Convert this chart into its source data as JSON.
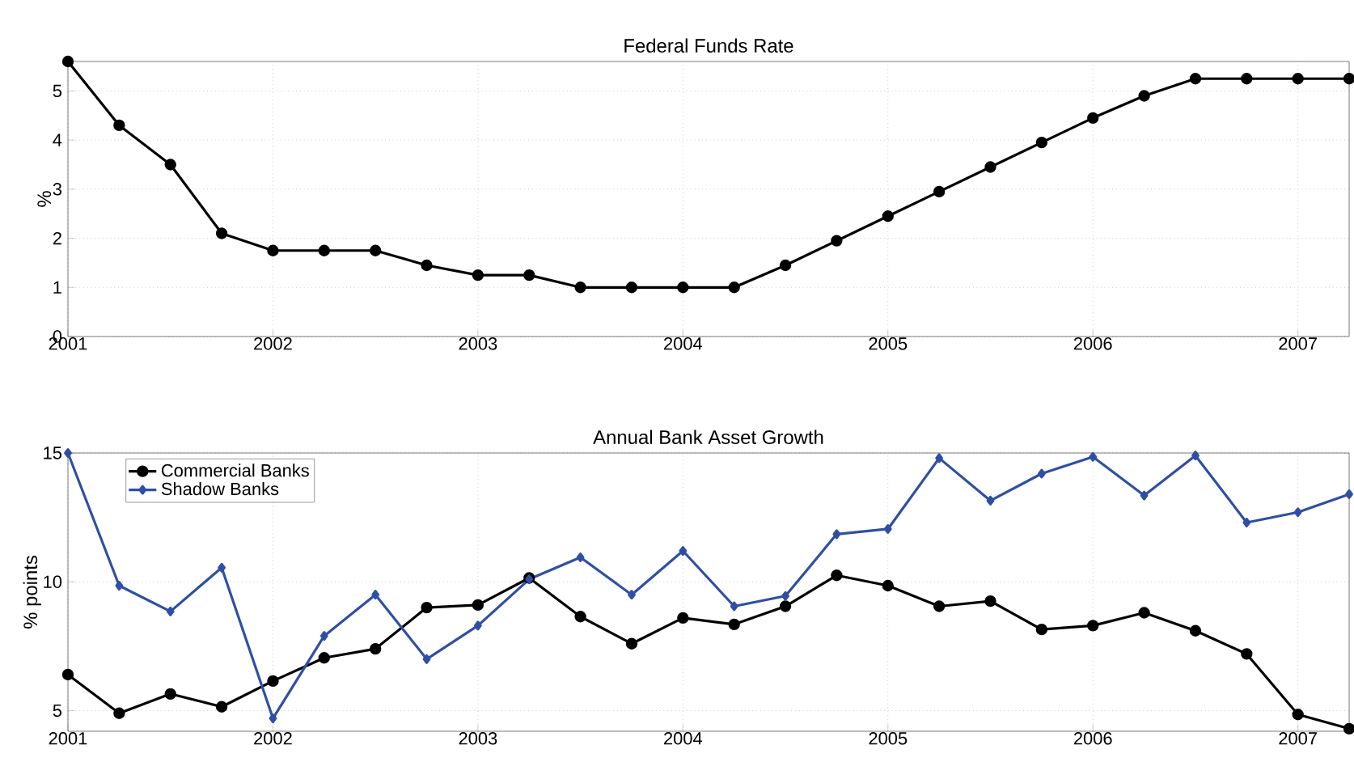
{
  "chart_data": [
    {
      "type": "line",
      "title": "Federal Funds Rate",
      "ylabel": "%",
      "x": [
        2001,
        2001.25,
        2001.5,
        2001.75,
        2002,
        2002.25,
        2002.5,
        2002.75,
        2003,
        2003.25,
        2003.5,
        2003.75,
        2004,
        2004.25,
        2004.5,
        2004.75,
        2005,
        2005.25,
        2005.5,
        2005.75,
        2006,
        2006.25,
        2006.5,
        2006.75,
        2007,
        2007.25
      ],
      "series": [
        {
          "color": "#000000",
          "values": [
            5.6,
            4.3,
            3.5,
            2.1,
            1.75,
            1.75,
            1.75,
            1.45,
            1.25,
            1.25,
            1.0,
            1.0,
            1.0,
            1.0,
            1.45,
            1.95,
            2.45,
            2.95,
            3.45,
            3.95,
            4.45,
            4.9,
            5.25,
            5.25,
            5.25,
            5.25
          ]
        }
      ],
      "xlim": [
        2001,
        2007.25
      ],
      "ylim": [
        0,
        5.6
      ],
      "xticks": [
        2001,
        2002,
        2003,
        2004,
        2005,
        2006,
        2007
      ],
      "yticks": [
        0,
        1,
        2,
        3,
        4,
        5
      ],
      "grid": true,
      "marker": "circle",
      "line_style": "solid"
    },
    {
      "type": "line",
      "title": "Annual Bank Asset Growth",
      "ylabel": "% points",
      "x": [
        2001,
        2001.25,
        2001.5,
        2001.75,
        2002,
        2002.25,
        2002.5,
        2002.75,
        2003,
        2003.25,
        2003.5,
        2003.75,
        2004,
        2004.25,
        2004.5,
        2004.75,
        2005,
        2005.25,
        2005.5,
        2005.75,
        2006,
        2006.25,
        2006.5,
        2006.75,
        2007,
        2007.25
      ],
      "series": [
        {
          "name": "Commercial Banks",
          "color": "#000000",
          "marker": "circle",
          "values": [
            6.4,
            4.9,
            5.65,
            5.15,
            6.15,
            7.05,
            7.4,
            9.0,
            9.1,
            10.15,
            8.65,
            7.6,
            8.6,
            8.35,
            9.05,
            10.25,
            9.85,
            9.05,
            9.25,
            8.15,
            8.3,
            8.8,
            8.1,
            7.2,
            4.85,
            4.3
          ]
        },
        {
          "name": "Shadow Banks",
          "color": "#2e4fa3",
          "marker": "diamond",
          "values": [
            15.0,
            9.85,
            8.85,
            10.55,
            4.7,
            7.9,
            9.5,
            7.0,
            8.3,
            10.1,
            10.95,
            9.5,
            11.2,
            9.05,
            9.45,
            11.85,
            12.05,
            14.8,
            13.15,
            14.2,
            14.85,
            13.35,
            14.9,
            12.3,
            12.7,
            13.4
          ]
        }
      ],
      "xlim": [
        2001,
        2007.25
      ],
      "ylim": [
        4.2,
        15
      ],
      "xticks": [
        2001,
        2002,
        2003,
        2004,
        2005,
        2006,
        2007
      ],
      "yticks": [
        5,
        10,
        15
      ],
      "grid": true,
      "legend": "top left",
      "line_style": "solid"
    }
  ]
}
